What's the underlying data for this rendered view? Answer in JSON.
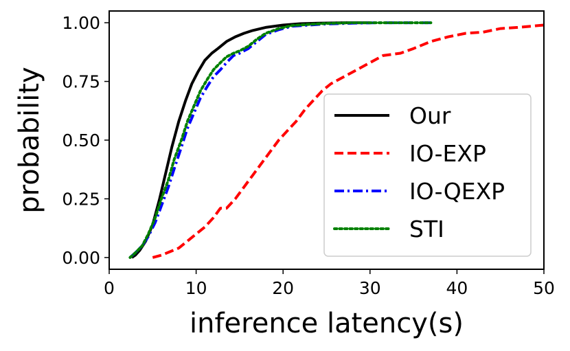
{
  "chart_data": {
    "type": "line",
    "title": "",
    "xlabel": "inference latency(s)",
    "ylabel": "probability",
    "xlim": [
      0,
      50
    ],
    "ylim": [
      -0.05,
      1.05
    ],
    "x_ticks": [
      0,
      10,
      20,
      30,
      40,
      50
    ],
    "x_tick_labels": [
      "0",
      "10",
      "20",
      "30",
      "40",
      "50"
    ],
    "y_ticks": [
      0.0,
      0.25,
      0.5,
      0.75,
      1.0
    ],
    "y_tick_labels": [
      "0.00",
      "0.25",
      "0.50",
      "0.75",
      "1.00"
    ],
    "grid": false,
    "legend_position": "center-right",
    "series": [
      {
        "name": "Our",
        "color": "#000000",
        "style": "solid",
        "x": [
          2.6,
          3.0,
          3.5,
          4.2,
          5.0,
          5.8,
          6.5,
          7.2,
          8.0,
          8.8,
          9.5,
          10.2,
          11.0,
          11.8,
          12.5,
          13.5,
          14.5,
          15.5,
          16.5,
          18.0,
          20.0,
          22.0,
          24.0,
          27.0,
          30.0
        ],
        "y": [
          0.0,
          0.01,
          0.03,
          0.07,
          0.14,
          0.25,
          0.36,
          0.47,
          0.58,
          0.67,
          0.74,
          0.79,
          0.84,
          0.87,
          0.89,
          0.92,
          0.94,
          0.955,
          0.967,
          0.98,
          0.99,
          0.996,
          0.998,
          1.0,
          1.0
        ]
      },
      {
        "name": "IO-EXP",
        "color": "#ff0000",
        "style": "dashed",
        "x": [
          5.0,
          6.0,
          7.0,
          8.0,
          9.0,
          10.0,
          11.0,
          12.0,
          12.8,
          13.5,
          14.5,
          15.5,
          16.5,
          17.5,
          18.5,
          19.5,
          20.5,
          21.5,
          22.5,
          23.5,
          24.5,
          25.5,
          27.0,
          28.5,
          30.0,
          31.5,
          32.5,
          33.5,
          35.0,
          37.0,
          39.0,
          41.0,
          43.0,
          45.0,
          47.0,
          48.5,
          50.0
        ],
        "y": [
          0.0,
          0.01,
          0.025,
          0.04,
          0.07,
          0.1,
          0.13,
          0.17,
          0.21,
          0.21,
          0.25,
          0.3,
          0.35,
          0.4,
          0.45,
          0.5,
          0.54,
          0.58,
          0.63,
          0.67,
          0.71,
          0.74,
          0.77,
          0.8,
          0.83,
          0.86,
          0.865,
          0.87,
          0.89,
          0.92,
          0.94,
          0.955,
          0.96,
          0.975,
          0.98,
          0.985,
          0.99
        ]
      },
      {
        "name": "IO-QEXP",
        "color": "#0000ff",
        "style": "dashdot",
        "x": [
          2.4,
          3.0,
          3.8,
          4.5,
          5.3,
          6.0,
          6.8,
          7.5,
          8.3,
          9.0,
          9.8,
          10.5,
          11.3,
          12.0,
          12.8,
          13.5,
          14.3,
          15.0,
          16.0,
          17.0,
          18.0,
          19.5,
          21.0,
          23.0,
          25.0,
          28.0,
          31.0,
          34.0,
          37.0
        ],
        "y": [
          0.0,
          0.02,
          0.05,
          0.09,
          0.15,
          0.22,
          0.3,
          0.38,
          0.47,
          0.55,
          0.62,
          0.68,
          0.73,
          0.77,
          0.8,
          0.83,
          0.86,
          0.87,
          0.89,
          0.92,
          0.95,
          0.97,
          0.985,
          0.99,
          0.995,
          0.998,
          1.0,
          1.0,
          1.0
        ]
      },
      {
        "name": "STI",
        "color": "#008000",
        "style": "dotted",
        "x": [
          2.4,
          3.0,
          3.8,
          4.5,
          5.3,
          6.0,
          6.8,
          7.5,
          8.3,
          9.0,
          9.8,
          10.5,
          11.3,
          12.0,
          12.8,
          13.5,
          14.3,
          15.0,
          16.0,
          17.0,
          18.0,
          19.5,
          21.0,
          23.0,
          25.0,
          28.0,
          31.0,
          34.0,
          37.0
        ],
        "y": [
          0.0,
          0.02,
          0.05,
          0.1,
          0.17,
          0.25,
          0.33,
          0.42,
          0.5,
          0.58,
          0.65,
          0.71,
          0.76,
          0.8,
          0.83,
          0.855,
          0.87,
          0.88,
          0.9,
          0.93,
          0.955,
          0.975,
          0.988,
          0.993,
          0.997,
          1.0,
          1.0,
          1.0,
          1.0
        ]
      }
    ]
  }
}
